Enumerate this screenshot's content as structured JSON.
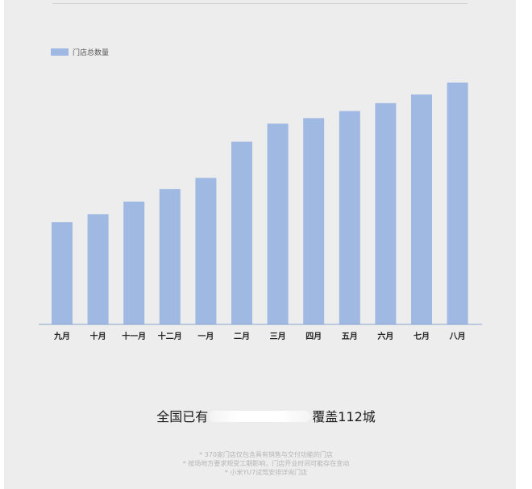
{
  "headline": {
    "prefix": "全国已有",
    "suffix": "覆盖112城"
  },
  "notes": [
    "* 370家门店仅包含具有销售与交付功能的门店",
    "* 按场地方要求规受工期影响，门店开业时间可能存在变动",
    "* 小米YU7试驾安排详询门店"
  ],
  "chart_data": {
    "type": "bar",
    "categories": [
      "九月",
      "十月",
      "十一月",
      "十二月",
      "一月",
      "二月",
      "三月",
      "四月",
      "五月",
      "六月",
      "七月",
      "八月"
    ],
    "series": [
      {
        "name": "门店总数量",
        "color": "#a0b9e2",
        "values": [
          130,
          140,
          156,
          172,
          186,
          232,
          255,
          262,
          271,
          281,
          292,
          307
        ]
      }
    ],
    "ylim": [
      0,
      330
    ],
    "legend": "top-left",
    "grid": false,
    "xlabel": "",
    "ylabel": ""
  }
}
